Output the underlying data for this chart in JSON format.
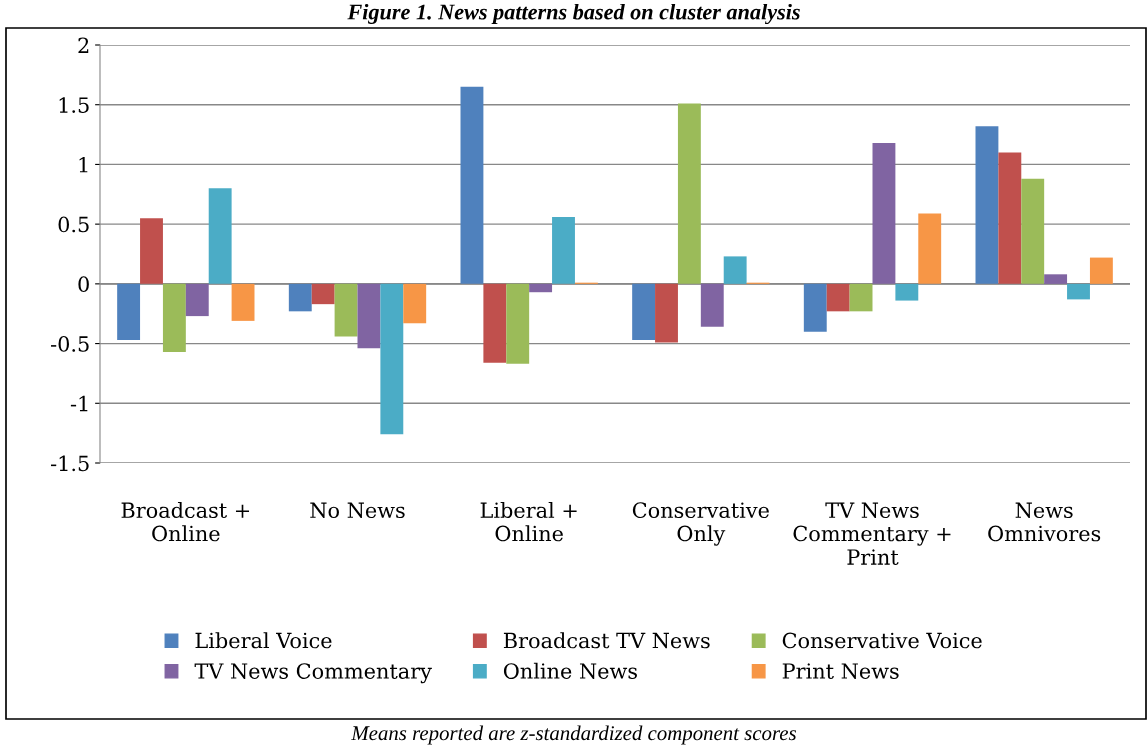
{
  "chart_data": {
    "type": "bar",
    "title": "Figure 1. News patterns based on cluster analysis",
    "categories": [
      "Broadcast +\nOnline",
      "No News",
      "Liberal +\nOnline",
      "Conservative\nOnly",
      "TV News\nCommentary +\nPrint",
      "News\nOmnivores"
    ],
    "series": [
      {
        "name": "Liberal Voice",
        "color": "#4f81bd",
        "values": [
          -0.47,
          -0.23,
          1.65,
          -0.47,
          -0.4,
          1.32
        ]
      },
      {
        "name": "Broadcast TV News",
        "color": "#c0504d",
        "values": [
          0.55,
          -0.17,
          -0.66,
          -0.49,
          -0.23,
          1.1
        ]
      },
      {
        "name": "Conservative Voice",
        "color": "#9bbb59",
        "values": [
          -0.57,
          -0.44,
          -0.67,
          1.51,
          -0.23,
          0.88
        ]
      },
      {
        "name": "TV News Commentary",
        "color": "#8064a2",
        "values": [
          -0.27,
          -0.54,
          -0.07,
          -0.36,
          1.18,
          0.08
        ]
      },
      {
        "name": "Online News",
        "color": "#4bacc6",
        "values": [
          0.8,
          -1.26,
          0.56,
          0.23,
          -0.14,
          -0.13
        ]
      },
      {
        "name": "Print News",
        "color": "#f79646",
        "values": [
          -0.31,
          -0.33,
          0.01,
          0.01,
          0.59,
          0.22
        ]
      }
    ],
    "ylim": [
      -1.5,
      2
    ],
    "yticks": [
      -1.5,
      -1,
      -0.5,
      0,
      0.5,
      1,
      1.5,
      2
    ],
    "grid": "y",
    "legend": "bottom",
    "annotations": [
      "Means reported are z-standardized component scores"
    ]
  }
}
